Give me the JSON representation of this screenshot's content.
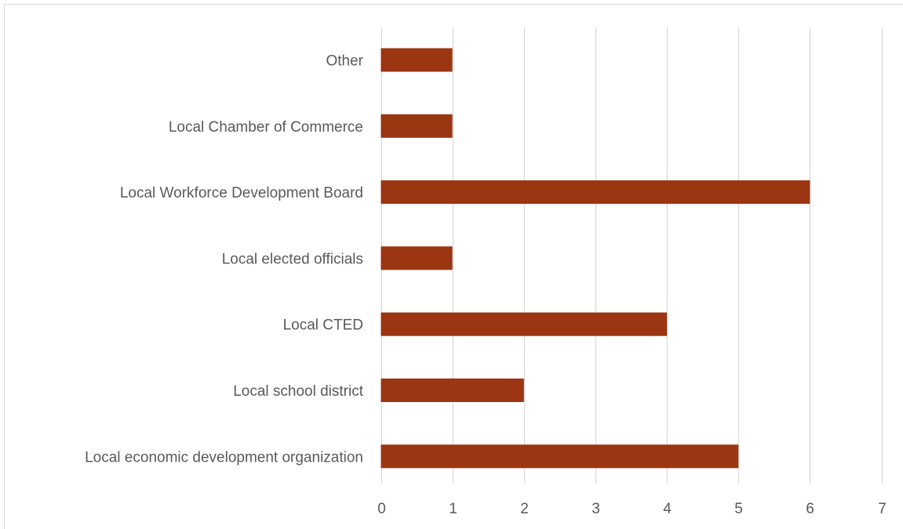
{
  "chart_data": {
    "type": "bar",
    "orientation": "horizontal",
    "categories": [
      "Other",
      "Local Chamber of Commerce",
      "Local Workforce Development Board",
      "Local elected officials",
      "Local CTED",
      "Local school district",
      "Local economic development organization"
    ],
    "values": [
      1,
      1,
      6,
      1,
      4,
      2,
      5
    ],
    "xlim": [
      0,
      7
    ],
    "x_ticks": [
      "0",
      "1",
      "2",
      "3",
      "4",
      "5",
      "6",
      "7"
    ],
    "grid": "vertical",
    "legend": "none",
    "bar_color": "#9c3512",
    "grid_color": "#d9d9d9",
    "label_color": "#595959"
  }
}
